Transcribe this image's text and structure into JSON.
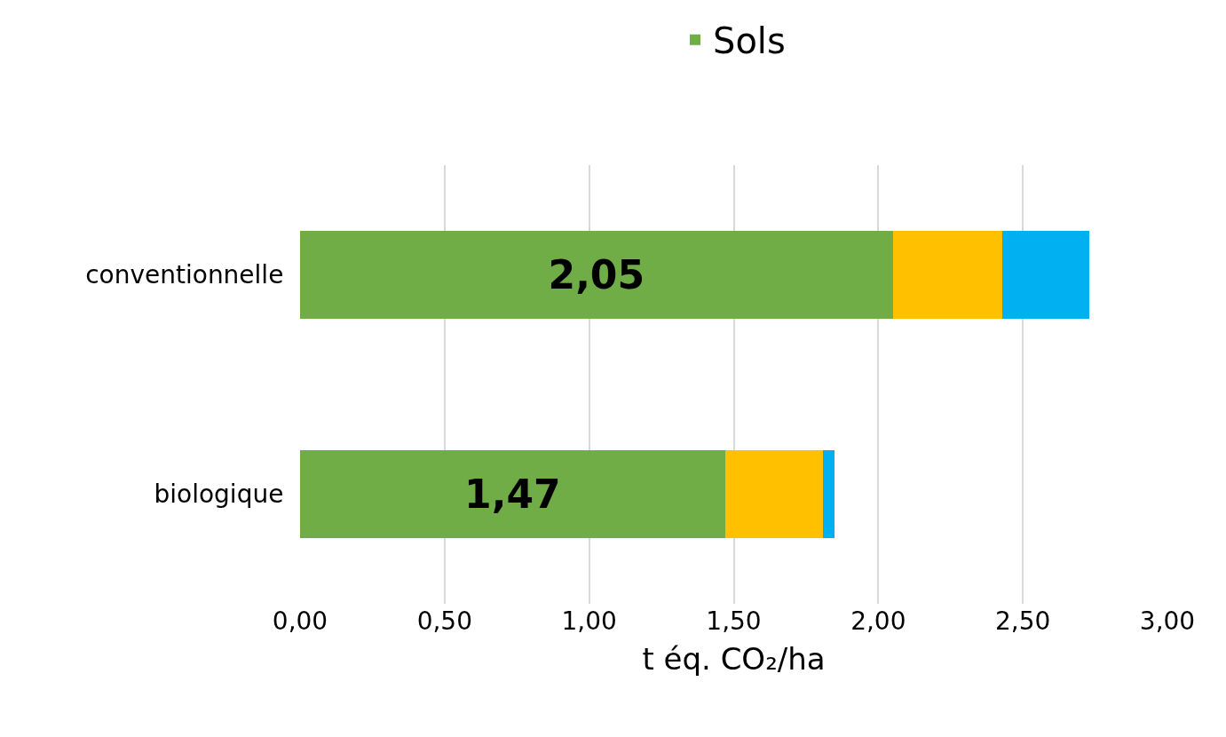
{
  "chart_data": {
    "type": "bar",
    "orientation": "horizontal",
    "stacked": true,
    "categories": [
      "conventionnelle",
      "biologique"
    ],
    "series": [
      {
        "name": "Sols",
        "color": "#70ad47",
        "values": [
          2.05,
          1.47
        ],
        "value_labels": [
          "2,05",
          "1,47"
        ]
      },
      {
        "color": "#ffc000",
        "values": [
          0.38,
          0.34
        ]
      },
      {
        "color": "#00b0f0",
        "values": [
          0.3,
          0.04
        ]
      }
    ],
    "xlabel": "t éq. CO₂/ha",
    "xlim": [
      0,
      3
    ],
    "xticks": [
      {
        "value": 0,
        "label": "0,00"
      },
      {
        "value": 0.5,
        "label": "0,50"
      },
      {
        "value": 1,
        "label": "1,00"
      },
      {
        "value": 1.5,
        "label": "1,50"
      },
      {
        "value": 2,
        "label": "2,00"
      },
      {
        "value": 2.5,
        "label": "2,50"
      },
      {
        "value": 3,
        "label": "3,00"
      }
    ],
    "grid": "x",
    "legend": "top"
  }
}
